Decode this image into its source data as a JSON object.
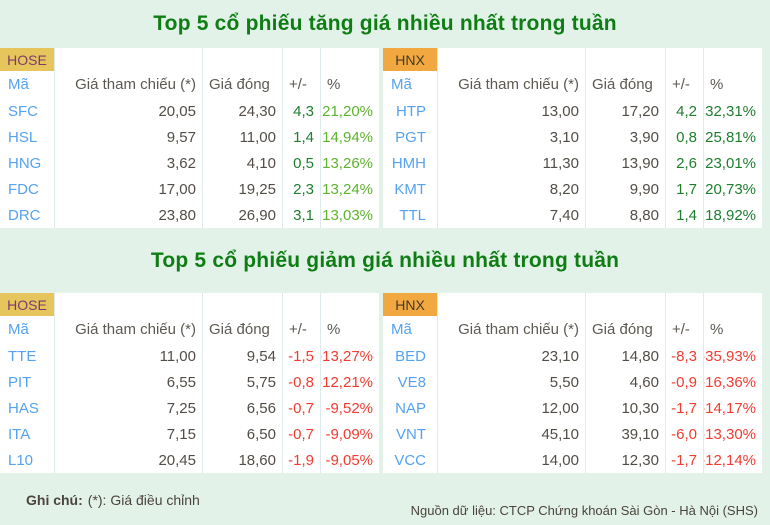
{
  "colors": {
    "background": "#e3f2e9",
    "title_green": "#0e7d13",
    "gain_dark_green": "#1e7e2e",
    "gain_light_green": "#5eb32f",
    "loss_red": "#f03c31",
    "ticker_blue": "#55a2f0",
    "badge_hose_bg": "#e6c55c",
    "badge_hose_text": "#7e3a6d",
    "badge_hnx_bg": "#f2a840",
    "badge_hnx_text": "#453a24"
  },
  "sections": [
    {
      "title": "Top 5 cổ phiếu tăng giá nhiều nhất trong tuần",
      "tables": [
        {
          "exchange": "HOSE",
          "columns": [
            "Mã",
            "Giá tham chiếu (*)",
            "Giá đóng",
            "+/-",
            "%"
          ],
          "rows": [
            {
              "ma": "SFC",
              "ref": "20,05",
              "close": "24,30",
              "chg": "4,3",
              "pct": "21,20%"
            },
            {
              "ma": "HSL",
              "ref": "9,57",
              "close": "11,00",
              "chg": "1,4",
              "pct": "14,94%"
            },
            {
              "ma": "HNG",
              "ref": "3,62",
              "close": "4,10",
              "chg": "0,5",
              "pct": "13,26%"
            },
            {
              "ma": "FDC",
              "ref": "17,00",
              "close": "19,25",
              "chg": "2,3",
              "pct": "13,24%"
            },
            {
              "ma": "DRC",
              "ref": "23,80",
              "close": "26,90",
              "chg": "3,1",
              "pct": "13,03%"
            }
          ]
        },
        {
          "exchange": "HNX",
          "columns": [
            "Mã",
            "Giá tham chiếu (*)",
            "Giá đóng",
            "+/-",
            "%"
          ],
          "rows": [
            {
              "ma": "HTP",
              "ref": "13,00",
              "close": "17,20",
              "chg": "4,2",
              "pct": "32,31%"
            },
            {
              "ma": "PGT",
              "ref": "3,10",
              "close": "3,90",
              "chg": "0,8",
              "pct": "25,81%"
            },
            {
              "ma": "HMH",
              "ref": "11,30",
              "close": "13,90",
              "chg": "2,6",
              "pct": "23,01%"
            },
            {
              "ma": "KMT",
              "ref": "8,20",
              "close": "9,90",
              "chg": "1,7",
              "pct": "20,73%"
            },
            {
              "ma": "TTL",
              "ref": "7,40",
              "close": "8,80",
              "chg": "1,4",
              "pct": "18,92%"
            }
          ]
        }
      ]
    },
    {
      "title": "Top 5 cổ phiếu giảm giá nhiều nhất trong tuần",
      "tables": [
        {
          "exchange": "HOSE",
          "columns": [
            "Mã",
            "Giá tham chiếu (*)",
            "Giá đóng",
            "+/-",
            "%"
          ],
          "rows": [
            {
              "ma": "TTE",
              "ref": "11,00",
              "close": "9,54",
              "chg": "-1,5",
              "pct": "-13,27%"
            },
            {
              "ma": "PIT",
              "ref": "6,55",
              "close": "5,75",
              "chg": "-0,8",
              "pct": "-12,21%"
            },
            {
              "ma": "HAS",
              "ref": "7,25",
              "close": "6,56",
              "chg": "-0,7",
              "pct": "-9,52%"
            },
            {
              "ma": "ITA",
              "ref": "7,15",
              "close": "6,50",
              "chg": "-0,7",
              "pct": "-9,09%"
            },
            {
              "ma": "L10",
              "ref": "20,45",
              "close": "18,60",
              "chg": "-1,9",
              "pct": "-9,05%"
            }
          ]
        },
        {
          "exchange": "HNX",
          "columns": [
            "Mã",
            "Giá tham chiếu (*)",
            "Giá đóng",
            "+/-",
            "%"
          ],
          "rows": [
            {
              "ma": "BED",
              "ref": "23,10",
              "close": "14,80",
              "chg": "-8,3",
              "pct": "-35,93%"
            },
            {
              "ma": "VE8",
              "ref": "5,50",
              "close": "4,60",
              "chg": "-0,9",
              "pct": "-16,36%"
            },
            {
              "ma": "NAP",
              "ref": "12,00",
              "close": "10,30",
              "chg": "-1,7",
              "pct": "-14,17%"
            },
            {
              "ma": "VNT",
              "ref": "45,10",
              "close": "39,10",
              "chg": "-6,0",
              "pct": "-13,30%"
            },
            {
              "ma": "VCC",
              "ref": "14,00",
              "close": "12,30",
              "chg": "-1,7",
              "pct": "-12,14%"
            }
          ]
        }
      ]
    }
  ],
  "footer": {
    "note_label": "Ghi chú:",
    "note_text": "(*): Giá điều chỉnh",
    "source": "Nguồn dữ liệu: CTCP Chứng khoán Sài Gòn - Hà Nội (SHS)"
  }
}
